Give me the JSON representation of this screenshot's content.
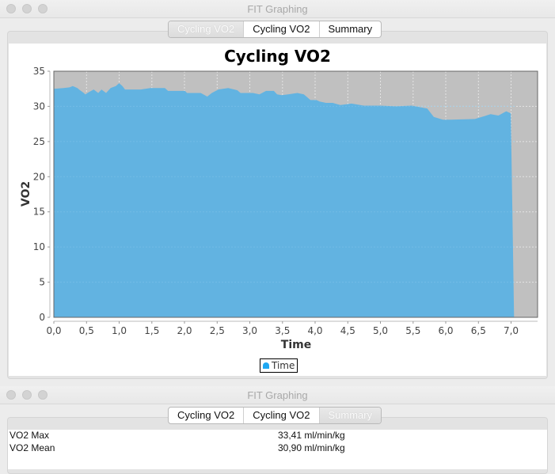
{
  "window1": {
    "title": "FIT Graphing",
    "tabs": [
      {
        "label": "Cycling VO2",
        "selected": true
      },
      {
        "label": "Cycling VO2",
        "selected": false
      },
      {
        "label": "Summary",
        "selected": false
      }
    ]
  },
  "chart_data": {
    "type": "area",
    "title": "Cycling VO2",
    "xlabel": "Time",
    "ylabel": "VO2",
    "xlim": [
      0,
      7.41
    ],
    "ylim": [
      0,
      35
    ],
    "xticks": [
      "0,0",
      "0,5",
      "1,0",
      "1,5",
      "2,0",
      "2,5",
      "3,0",
      "3,5",
      "4,0",
      "4,5",
      "5,0",
      "5,5",
      "6,0",
      "6,5",
      "7,0"
    ],
    "yticks": [
      "0",
      "5",
      "10",
      "15",
      "20",
      "25",
      "30",
      "35"
    ],
    "grid": true,
    "legend": {
      "entries": [
        "Time"
      ],
      "position": "bottom"
    },
    "series_color": "#62b3e1",
    "plot_background": "#c0c0c0",
    "series": [
      {
        "name": "Time",
        "x": [
          0.0,
          0.15,
          0.24,
          0.29,
          0.36,
          0.4,
          0.46,
          0.48,
          0.53,
          0.61,
          0.68,
          0.73,
          0.8,
          0.87,
          0.95,
          1.0,
          1.05,
          1.09,
          1.33,
          1.48,
          1.7,
          1.75,
          2.01,
          2.04,
          2.25,
          2.35,
          2.42,
          2.52,
          2.67,
          2.81,
          2.86,
          2.93,
          3.05,
          3.15,
          3.25,
          3.37,
          3.42,
          3.49,
          3.59,
          3.73,
          3.83,
          3.93,
          4.02,
          4.07,
          4.17,
          4.27,
          4.39,
          4.56,
          4.75,
          5.0,
          5.24,
          5.48,
          5.72,
          5.82,
          5.96,
          6.08,
          6.45,
          6.59,
          6.69,
          6.81,
          6.93,
          7.0,
          7.05
        ],
        "y": [
          32.5,
          32.6,
          32.7,
          32.9,
          32.6,
          32.3,
          31.9,
          31.7,
          32.0,
          32.4,
          31.9,
          32.4,
          31.9,
          32.6,
          32.9,
          33.3,
          32.9,
          32.4,
          32.4,
          32.6,
          32.6,
          32.2,
          32.2,
          31.9,
          31.9,
          31.4,
          31.9,
          32.4,
          32.6,
          32.3,
          31.9,
          31.9,
          31.9,
          31.7,
          32.2,
          32.2,
          31.7,
          31.6,
          31.7,
          31.9,
          31.7,
          30.9,
          30.9,
          30.7,
          30.5,
          30.5,
          30.2,
          30.4,
          30.1,
          30.1,
          30.0,
          30.1,
          29.7,
          28.5,
          28.1,
          28.1,
          28.2,
          28.6,
          28.9,
          28.7,
          29.3,
          29.0,
          0
        ]
      }
    ]
  },
  "chart_labels": {
    "title": "Cycling VO2",
    "xlabel": "Time",
    "ylabel": "VO2",
    "legend_label": "Time"
  },
  "window2": {
    "title": "FIT Graphing",
    "tabs": [
      {
        "label": "Cycling VO2",
        "selected": false
      },
      {
        "label": "Cycling VO2",
        "selected": false
      },
      {
        "label": "Summary",
        "selected": true
      }
    ],
    "summary": [
      {
        "label": "VO2 Max",
        "value": "33,41 ml/min/kg"
      },
      {
        "label": "VO2 Mean",
        "value": "30,90 ml/min/kg"
      }
    ]
  }
}
